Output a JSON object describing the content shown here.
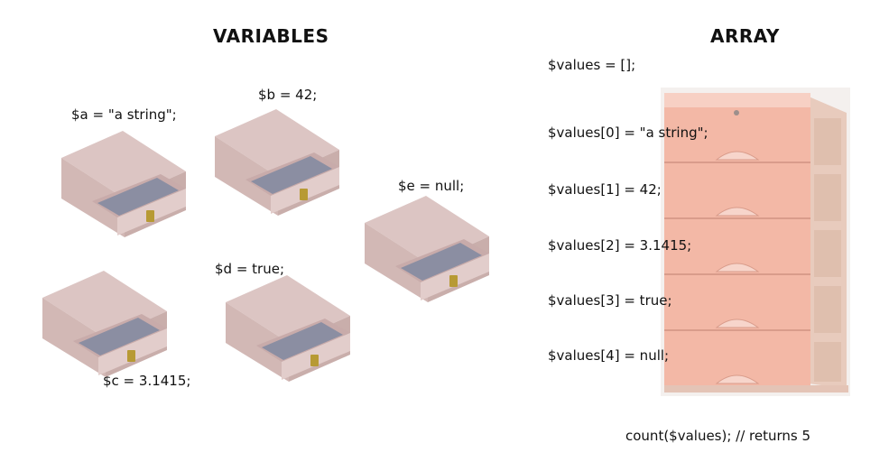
{
  "variables": {
    "heading": "VARIABLES",
    "items": [
      {
        "id": "a",
        "label": "$a = \"a string\";"
      },
      {
        "id": "b",
        "label": "$b = 42;"
      },
      {
        "id": "c",
        "label": "$c = 3.1415;"
      },
      {
        "id": "d",
        "label": "$d = true;"
      },
      {
        "id": "e",
        "label": "$e = null;"
      }
    ]
  },
  "array": {
    "heading": "ARRAY",
    "init": "$values = [];",
    "items": [
      "$values[0] = \"a string\";",
      "$values[1] = 42;",
      "$values[2] = 3.1415;",
      "$values[3] = true;",
      "$values[4] = null;"
    ],
    "count": "count($values); // returns 5"
  },
  "colors": {
    "box_top": "#dcc5c3",
    "box_front": "#ccb0ad",
    "box_side": "#c3a6a3",
    "drawer_inner": "#8b8ea2",
    "handle": "#b79a34",
    "chest_drawer": "#f3b8a6",
    "chest_frame": "#e8cbbd"
  }
}
